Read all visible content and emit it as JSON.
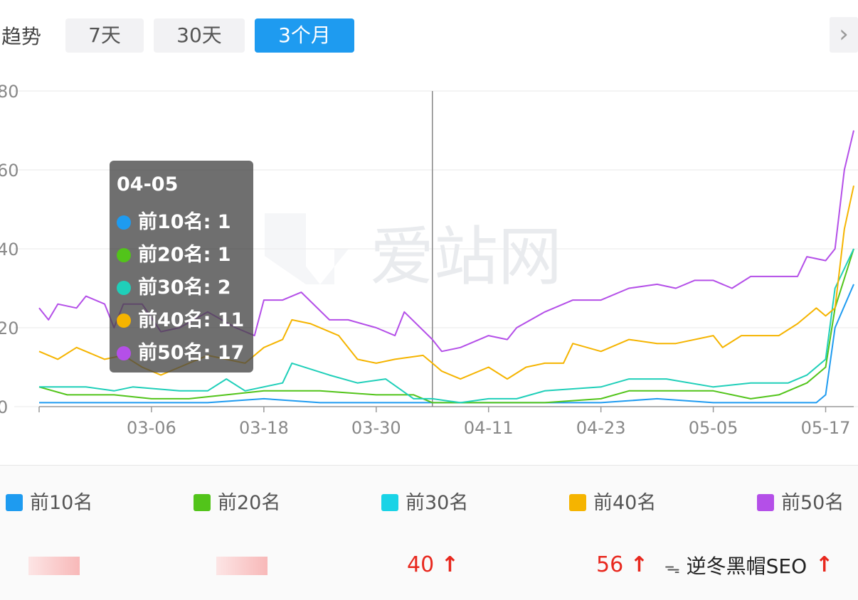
{
  "header": {
    "title": "趋势",
    "tabs": [
      {
        "label": "7天",
        "active": false
      },
      {
        "label": "30天",
        "active": false
      },
      {
        "label": "3个月",
        "active": true
      }
    ],
    "next_icon": "chevron-right-icon"
  },
  "watermark": "爱站网",
  "tooltip": {
    "date": "04-05",
    "rows": [
      {
        "label": "前10名: 1",
        "color": "#1e9bf0"
      },
      {
        "label": "前20名: 1",
        "color": "#52c41a"
      },
      {
        "label": "前30名: 2",
        "color": "#1fcfb9"
      },
      {
        "label": "前40名: 11",
        "color": "#f5b400"
      },
      {
        "label": "前50名: 17",
        "color": "#b44fe8"
      }
    ]
  },
  "legend": [
    {
      "label": "前10名",
      "color": "#1e9bf0"
    },
    {
      "label": "前20名",
      "color": "#52c41a"
    },
    {
      "label": "前30名",
      "color": "#19d3e6"
    },
    {
      "label": "前40名",
      "color": "#f5b400"
    },
    {
      "label": "前50名",
      "color": "#b44fe8"
    }
  ],
  "summary": [
    {
      "value": "",
      "obscured": true
    },
    {
      "value": "",
      "obscured": true
    },
    {
      "value": "40",
      "arrow": "↑"
    },
    {
      "value": "56",
      "arrow": "↑"
    },
    {
      "value": "",
      "arrow": "↑",
      "obscured": true
    }
  ],
  "footer_watermark": "逆冬黑帽SEO",
  "chart_data": {
    "type": "line",
    "ylim": [
      0,
      80
    ],
    "yticks": [
      "0",
      "20",
      "40",
      "60",
      "80"
    ],
    "xticks": [
      "03-06",
      "03-18",
      "03-30",
      "04-11",
      "04-23",
      "05-05",
      "05-17"
    ],
    "x_start": "02-23",
    "x_end": "05-20",
    "highlight_date": "04-05",
    "series": [
      {
        "name": "前10名",
        "color": "#1e9bf0",
        "points": [
          [
            "02-23",
            1
          ],
          [
            "03-06",
            1
          ],
          [
            "03-12",
            1
          ],
          [
            "03-18",
            2
          ],
          [
            "03-24",
            1
          ],
          [
            "03-30",
            1
          ],
          [
            "04-04",
            1
          ],
          [
            "04-05",
            1
          ],
          [
            "04-11",
            1
          ],
          [
            "04-17",
            1
          ],
          [
            "04-23",
            1
          ],
          [
            "04-29",
            2
          ],
          [
            "05-05",
            1
          ],
          [
            "05-11",
            1
          ],
          [
            "05-16",
            1
          ],
          [
            "05-17",
            3
          ],
          [
            "05-18",
            20
          ],
          [
            "05-20",
            31
          ]
        ]
      },
      {
        "name": "前20名",
        "color": "#52c41a",
        "points": [
          [
            "02-23",
            5
          ],
          [
            "02-26",
            3
          ],
          [
            "03-02",
            3
          ],
          [
            "03-06",
            2
          ],
          [
            "03-10",
            2
          ],
          [
            "03-14",
            3
          ],
          [
            "03-18",
            4
          ],
          [
            "03-24",
            4
          ],
          [
            "03-30",
            3
          ],
          [
            "04-03",
            3
          ],
          [
            "04-05",
            1
          ],
          [
            "04-11",
            1
          ],
          [
            "04-17",
            1
          ],
          [
            "04-23",
            2
          ],
          [
            "04-26",
            4
          ],
          [
            "05-01",
            4
          ],
          [
            "05-05",
            4
          ],
          [
            "05-09",
            2
          ],
          [
            "05-12",
            3
          ],
          [
            "05-15",
            6
          ],
          [
            "05-17",
            10
          ],
          [
            "05-18",
            25
          ],
          [
            "05-20",
            40
          ]
        ]
      },
      {
        "name": "前30名",
        "color": "#1fcfb9",
        "points": [
          [
            "02-23",
            5
          ],
          [
            "02-28",
            5
          ],
          [
            "03-02",
            4
          ],
          [
            "03-04",
            5
          ],
          [
            "03-09",
            4
          ],
          [
            "03-12",
            4
          ],
          [
            "03-14",
            7
          ],
          [
            "03-16",
            4
          ],
          [
            "03-20",
            6
          ],
          [
            "03-21",
            11
          ],
          [
            "03-25",
            8
          ],
          [
            "03-28",
            6
          ],
          [
            "03-31",
            7
          ],
          [
            "04-03",
            2
          ],
          [
            "04-05",
            2
          ],
          [
            "04-08",
            1
          ],
          [
            "04-11",
            2
          ],
          [
            "04-14",
            2
          ],
          [
            "04-17",
            4
          ],
          [
            "04-23",
            5
          ],
          [
            "04-26",
            7
          ],
          [
            "04-30",
            7
          ],
          [
            "05-05",
            5
          ],
          [
            "05-09",
            6
          ],
          [
            "05-13",
            6
          ],
          [
            "05-15",
            8
          ],
          [
            "05-17",
            12
          ],
          [
            "05-18",
            30
          ],
          [
            "05-20",
            40
          ]
        ]
      },
      {
        "name": "前40名",
        "color": "#f5b400",
        "points": [
          [
            "02-23",
            14
          ],
          [
            "02-25",
            12
          ],
          [
            "02-27",
            15
          ],
          [
            "03-01",
            12
          ],
          [
            "03-03",
            13
          ],
          [
            "03-05",
            10
          ],
          [
            "03-07",
            8
          ],
          [
            "03-09",
            10
          ],
          [
            "03-12",
            13
          ],
          [
            "03-14",
            12
          ],
          [
            "03-16",
            11
          ],
          [
            "03-18",
            15
          ],
          [
            "03-20",
            17
          ],
          [
            "03-21",
            22
          ],
          [
            "03-23",
            21
          ],
          [
            "03-26",
            18
          ],
          [
            "03-28",
            12
          ],
          [
            "03-30",
            11
          ],
          [
            "04-01",
            12
          ],
          [
            "04-04",
            13
          ],
          [
            "04-05",
            11
          ],
          [
            "04-06",
            9
          ],
          [
            "04-08",
            7
          ],
          [
            "04-11",
            10
          ],
          [
            "04-13",
            7
          ],
          [
            "04-15",
            10
          ],
          [
            "04-17",
            11
          ],
          [
            "04-19",
            11
          ],
          [
            "04-20",
            16
          ],
          [
            "04-23",
            14
          ],
          [
            "04-26",
            17
          ],
          [
            "04-29",
            16
          ],
          [
            "05-01",
            16
          ],
          [
            "05-05",
            18
          ],
          [
            "05-06",
            15
          ],
          [
            "05-08",
            18
          ],
          [
            "05-12",
            18
          ],
          [
            "05-14",
            21
          ],
          [
            "05-16",
            25
          ],
          [
            "05-17",
            23
          ],
          [
            "05-18",
            25
          ],
          [
            "05-19",
            45
          ],
          [
            "05-20",
            56
          ]
        ]
      },
      {
        "name": "前50名",
        "color": "#b44fe8",
        "points": [
          [
            "02-23",
            25
          ],
          [
            "02-24",
            22
          ],
          [
            "02-25",
            26
          ],
          [
            "02-27",
            25
          ],
          [
            "02-28",
            28
          ],
          [
            "03-01",
            26
          ],
          [
            "03-02",
            20
          ],
          [
            "03-03",
            26
          ],
          [
            "03-05",
            26
          ],
          [
            "03-07",
            19
          ],
          [
            "03-09",
            20
          ],
          [
            "03-12",
            24
          ],
          [
            "03-15",
            20
          ],
          [
            "03-17",
            18
          ],
          [
            "03-18",
            27
          ],
          [
            "03-20",
            27
          ],
          [
            "03-22",
            29
          ],
          [
            "03-25",
            22
          ],
          [
            "03-27",
            22
          ],
          [
            "03-30",
            20
          ],
          [
            "04-01",
            18
          ],
          [
            "04-02",
            24
          ],
          [
            "04-05",
            17
          ],
          [
            "04-06",
            14
          ],
          [
            "04-08",
            15
          ],
          [
            "04-11",
            18
          ],
          [
            "04-13",
            17
          ],
          [
            "04-14",
            20
          ],
          [
            "04-17",
            24
          ],
          [
            "04-20",
            27
          ],
          [
            "04-23",
            27
          ],
          [
            "04-26",
            30
          ],
          [
            "04-29",
            31
          ],
          [
            "05-01",
            30
          ],
          [
            "05-03",
            32
          ],
          [
            "05-05",
            32
          ],
          [
            "05-07",
            30
          ],
          [
            "05-09",
            33
          ],
          [
            "05-12",
            33
          ],
          [
            "05-14",
            33
          ],
          [
            "05-15",
            38
          ],
          [
            "05-17",
            37
          ],
          [
            "05-18",
            40
          ],
          [
            "05-19",
            60
          ],
          [
            "05-20",
            70
          ]
        ]
      }
    ]
  }
}
